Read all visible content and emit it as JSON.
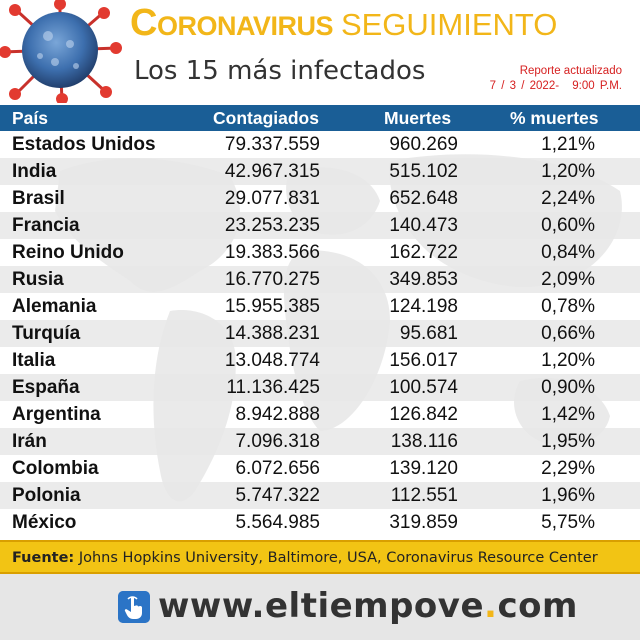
{
  "header": {
    "title_main": "Coronavirus",
    "title_secondary": "SEGUIMIENTO",
    "subtitle": "Los 15 más infectados",
    "report_label": "Reporte actualizado",
    "report_date": "7 / 3 / 2022-",
    "report_time": "9:00 P.M."
  },
  "table": {
    "columns": [
      "País",
      "Contagiados",
      "Muertes",
      "% muertes"
    ],
    "rows": [
      [
        "Estados Unidos",
        "79.337.559",
        "960.269",
        "1,21%"
      ],
      [
        "India",
        "42.967.315",
        "515.102",
        "1,20%"
      ],
      [
        "Brasil",
        "29.077.831",
        "652.648",
        "2,24%"
      ],
      [
        "Francia",
        "23.253.235",
        "140.473",
        "0,60%"
      ],
      [
        "Reino Unido",
        "19.383.566",
        "162.722",
        "0,84%"
      ],
      [
        "Rusia",
        "16.770.275",
        "349.853",
        "2,09%"
      ],
      [
        "Alemania",
        "15.955.385",
        "124.198",
        "0,78%"
      ],
      [
        "Turquía",
        "14.388.231",
        "95.681",
        "0,66%"
      ],
      [
        "Italia",
        "13.048.774",
        "156.017",
        "1,20%"
      ],
      [
        "España",
        "11.136.425",
        "100.574",
        "0,90%"
      ],
      [
        "Argentina",
        "8.942.888",
        "126.842",
        "1,42%"
      ],
      [
        "Irán",
        "7.096.318",
        "138.116",
        "1,95%"
      ],
      [
        "Colombia",
        "6.072.656",
        "139.120",
        "2,29%"
      ],
      [
        "Polonia",
        "5.747.322",
        "112.551",
        "1,96%"
      ],
      [
        "México",
        "5.564.985",
        "319.859",
        "5,75%"
      ]
    ]
  },
  "source": {
    "label": "Fuente:",
    "text": "Johns Hopkins University, Baltimore, USA, Coronavirus Resource Center"
  },
  "footer": {
    "site_prefix": "www.",
    "site_name": "eltiempove",
    "site_dot": ".",
    "site_suffix": "com",
    "icon": "hand-pointer-icon"
  },
  "colors": {
    "accent_yellow": "#f2b619",
    "header_blue": "#1a5e96",
    "report_red": "#d62020"
  }
}
